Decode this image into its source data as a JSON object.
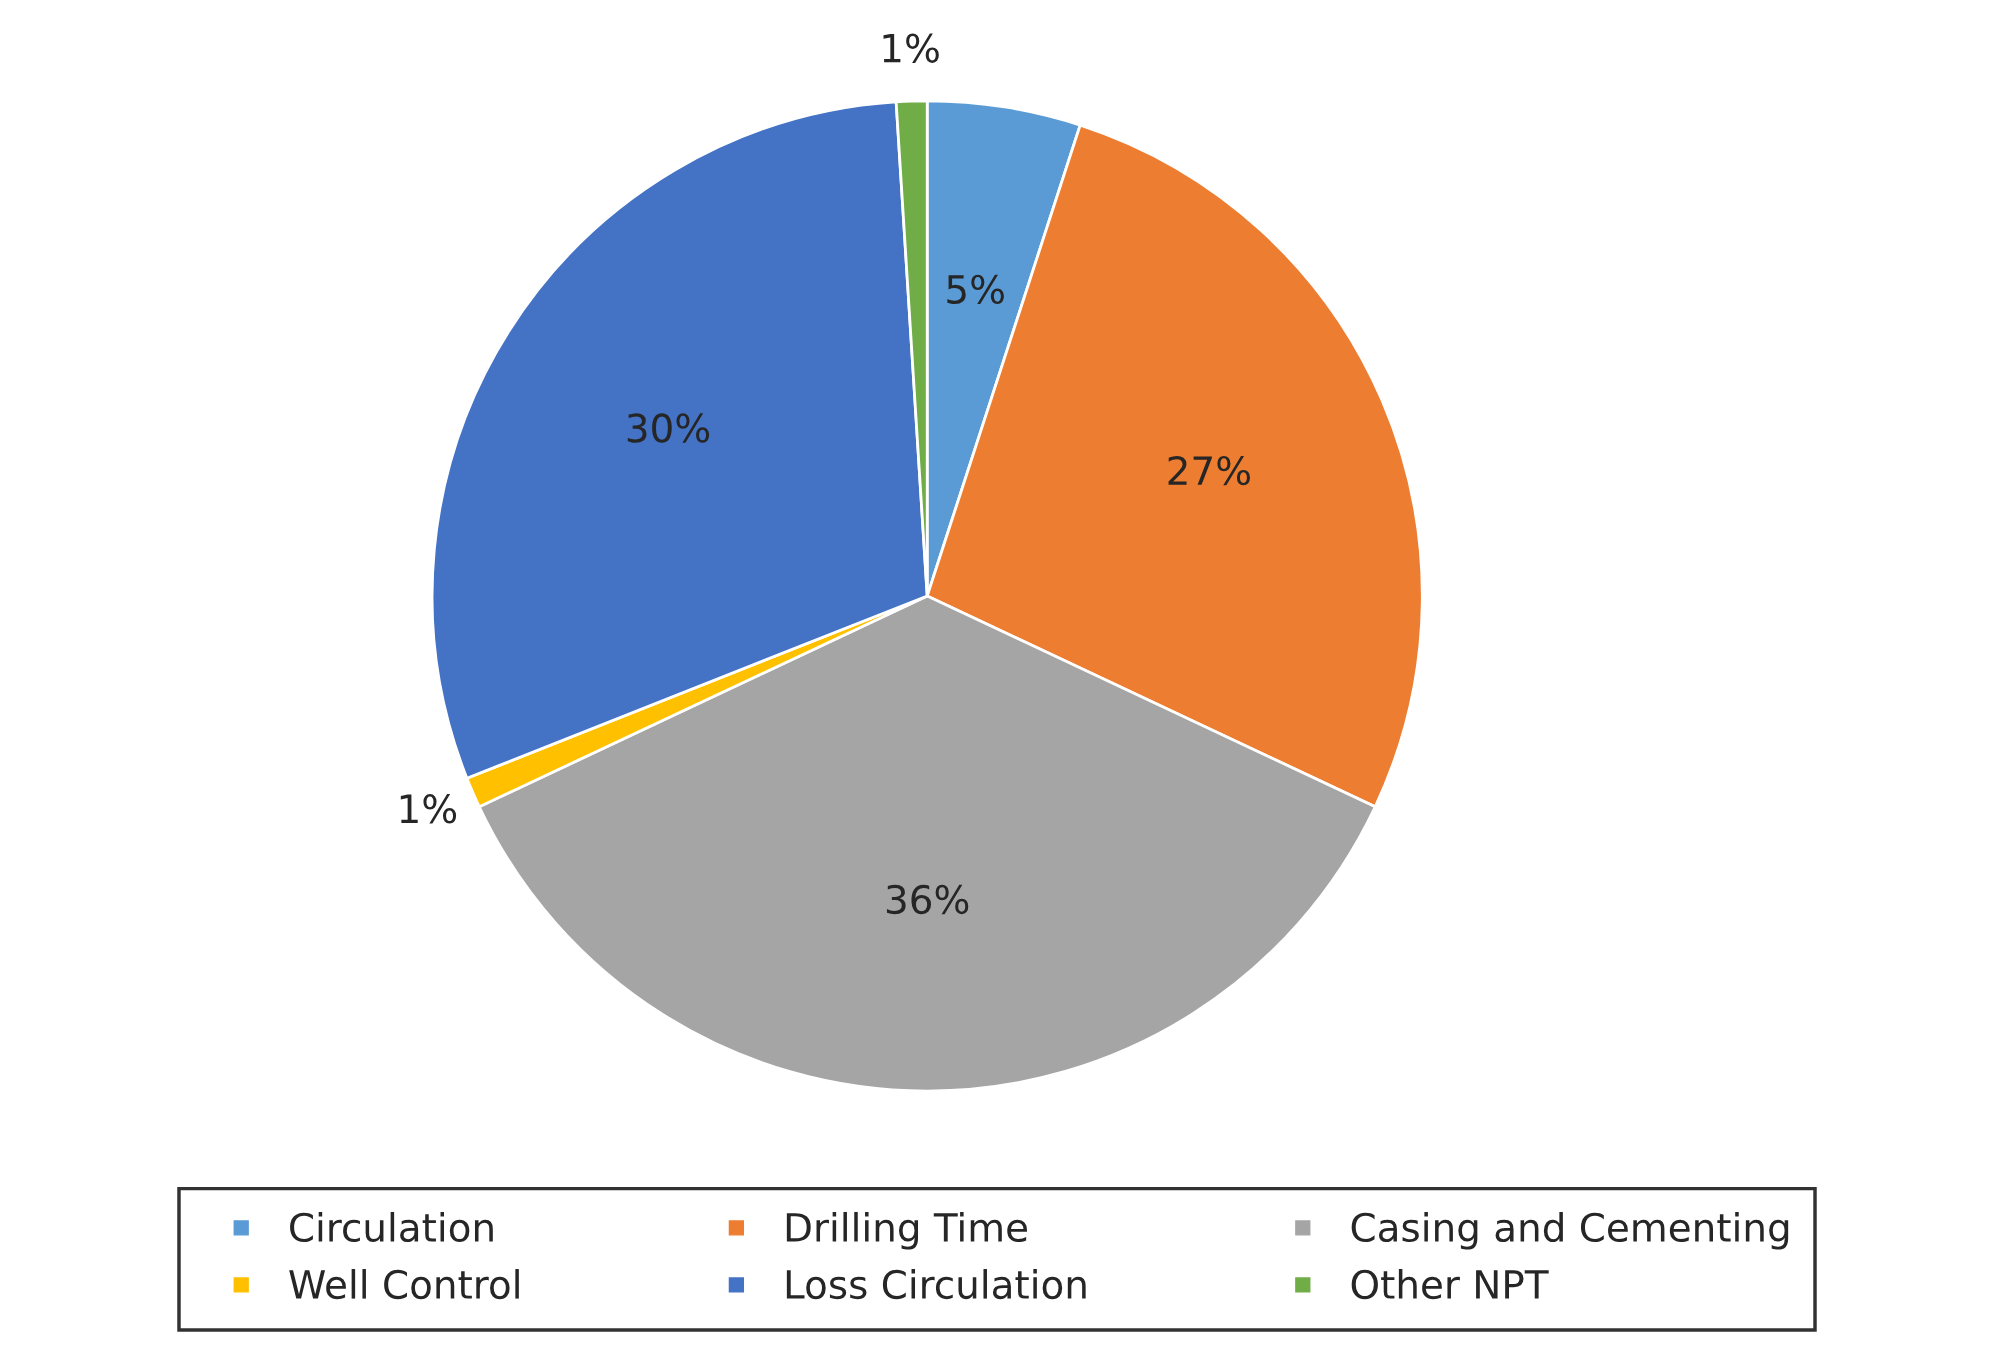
{
  "chart_data": {
    "type": "pie",
    "categories": [
      "Circulation",
      "Drilling Time",
      "Casing and Cementing",
      "Well Control",
      "Loss Circulation",
      "Other NPT"
    ],
    "values": [
      5,
      27,
      36,
      1,
      30,
      1
    ],
    "colors": [
      "#5b9bd5",
      "#ed7d31",
      "#a5a5a5",
      "#ffc000",
      "#4472c4",
      "#70ad47"
    ],
    "value_labels": [
      "5%",
      "27%",
      "36%",
      "1%",
      "30%",
      "1%"
    ],
    "legend": "bottom"
  }
}
